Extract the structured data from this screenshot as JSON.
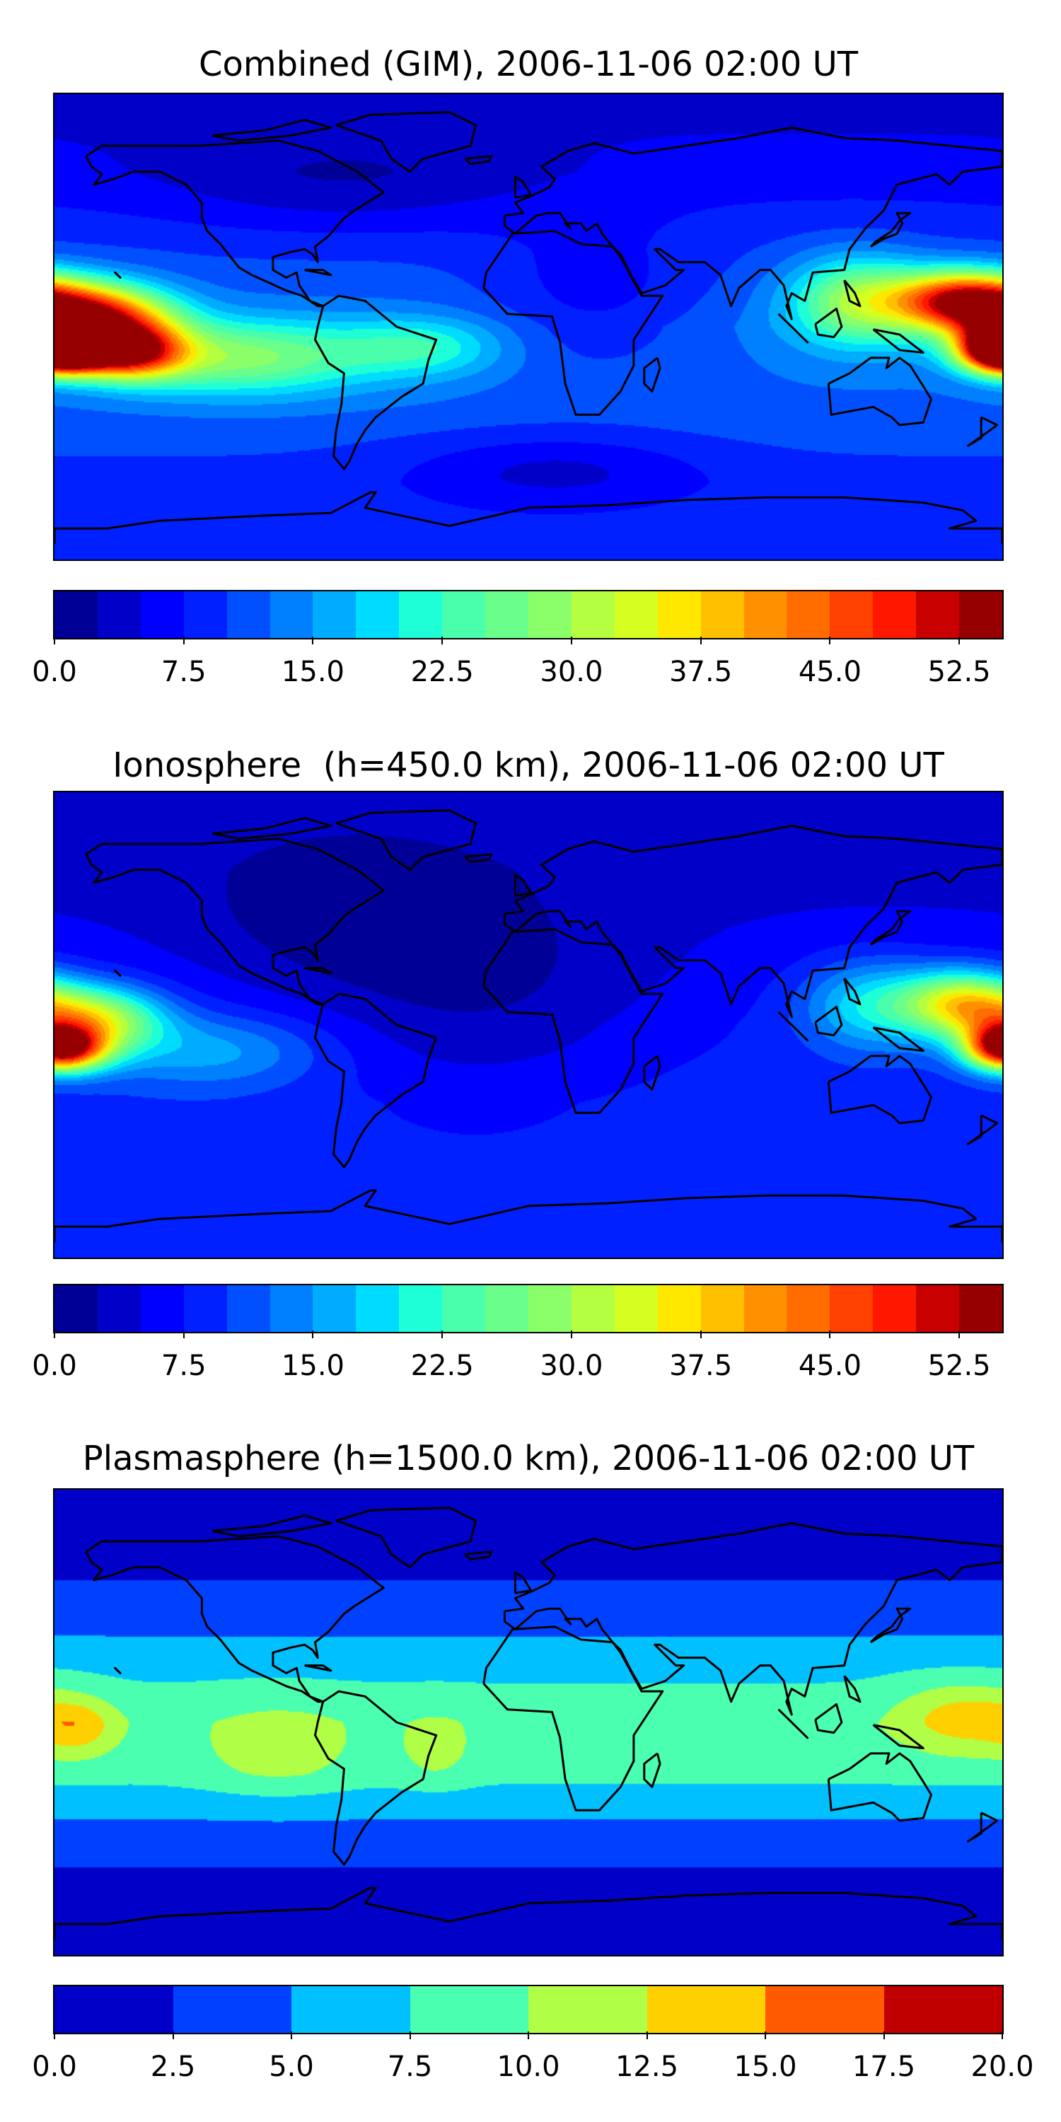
{
  "chart_data": [
    {
      "type": "heatmap",
      "subtype": "filled-contour-map",
      "title": "Combined (GIM), 2006-11-06 02:00 UT",
      "xlim": [
        -180,
        180
      ],
      "ylim": [
        -90,
        90
      ],
      "levels": {
        "min": 0,
        "max": 55,
        "step": 2.5
      },
      "colorbar_ticks": [
        "0.0",
        "7.5",
        "15.0",
        "22.5",
        "30.0",
        "37.5",
        "45.0",
        "52.5"
      ],
      "colorbar_tick_values": [
        0,
        7.5,
        15,
        22.5,
        30,
        37.5,
        45,
        52.5
      ],
      "colors": [
        "#000096",
        "#0000c8",
        "#0000ff",
        "#0020ff",
        "#0050ff",
        "#0080ff",
        "#00acff",
        "#00dcff",
        "#1effd8",
        "#4affac",
        "#6aff8a",
        "#8aff6a",
        "#b4ff40",
        "#d4ff20",
        "#ffe800",
        "#ffc000",
        "#ff9000",
        "#ff6c00",
        "#ff4000",
        "#ff1800",
        "#c80000",
        "#960000"
      ],
      "field": {
        "background_by_lat": [
          [
            -90,
            8
          ],
          [
            -60,
            9
          ],
          [
            -30,
            12
          ],
          [
            0,
            13
          ],
          [
            30,
            10
          ],
          [
            60,
            6
          ],
          [
            90,
            4
          ]
        ],
        "features": [
          {
            "lon": -165,
            "lat": 3,
            "amp": 38,
            "slon": 20,
            "slat": 9
          },
          {
            "lon": -175,
            "lat": -10,
            "amp": 30,
            "slon": 14,
            "slat": 6
          },
          {
            "lon": -150,
            "lat": -10,
            "amp": 28,
            "slon": 14,
            "slat": 7
          },
          {
            "lon": -110,
            "lat": -12,
            "amp": 16,
            "slon": 35,
            "slat": 10
          },
          {
            "lon": -40,
            "lat": -8,
            "amp": 9,
            "slon": 22,
            "slat": 8
          },
          {
            "lon": 165,
            "lat": 10,
            "amp": 38,
            "slon": 18,
            "slat": 8
          },
          {
            "lon": 180,
            "lat": -8,
            "amp": 36,
            "slon": 10,
            "slat": 6
          },
          {
            "lon": 125,
            "lat": 10,
            "amp": 18,
            "slon": 18,
            "slat": 12
          },
          {
            "lon": -70,
            "lat": 55,
            "amp": -4,
            "slon": 50,
            "slat": 14
          },
          {
            "lon": 10,
            "lat": -55,
            "amp": -5,
            "slon": 40,
            "slat": 10
          },
          {
            "lon": 25,
            "lat": 10,
            "amp": -5,
            "slon": 30,
            "slat": 20
          }
        ]
      }
    },
    {
      "type": "heatmap",
      "subtype": "filled-contour-map",
      "title": "Ionosphere  (h=450.0 km), 2006-11-06 02:00 UT",
      "xlim": [
        -180,
        180
      ],
      "ylim": [
        -90,
        90
      ],
      "levels": {
        "min": 0,
        "max": 55,
        "step": 2.5
      },
      "colorbar_ticks": [
        "0.0",
        "7.5",
        "15.0",
        "22.5",
        "30.0",
        "37.5",
        "45.0",
        "52.5"
      ],
      "colorbar_tick_values": [
        0,
        7.5,
        15,
        22.5,
        30,
        37.5,
        45,
        52.5
      ],
      "colors": [
        "#000096",
        "#0000c8",
        "#0000ff",
        "#0020ff",
        "#0050ff",
        "#0080ff",
        "#00acff",
        "#00dcff",
        "#1effd8",
        "#4affac",
        "#6aff8a",
        "#8aff6a",
        "#b4ff40",
        "#d4ff20",
        "#ffe800",
        "#ffc000",
        "#ff9000",
        "#ff6c00",
        "#ff4000",
        "#ff1800",
        "#c80000",
        "#960000"
      ],
      "field": {
        "background_by_lat": [
          [
            -90,
            8
          ],
          [
            -60,
            8
          ],
          [
            -30,
            9
          ],
          [
            0,
            8
          ],
          [
            30,
            6
          ],
          [
            60,
            4
          ],
          [
            90,
            3
          ]
        ],
        "features": [
          {
            "lon": -165,
            "lat": 2,
            "amp": 24,
            "slon": 18,
            "slat": 9
          },
          {
            "lon": -175,
            "lat": -10,
            "amp": 22,
            "slon": 12,
            "slat": 6
          },
          {
            "lon": -120,
            "lat": -10,
            "amp": 8,
            "slon": 30,
            "slat": 10
          },
          {
            "lon": 165,
            "lat": 8,
            "amp": 26,
            "slon": 16,
            "slat": 9
          },
          {
            "lon": 180,
            "lat": -8,
            "amp": 24,
            "slon": 10,
            "slat": 6
          },
          {
            "lon": 130,
            "lat": 8,
            "amp": 12,
            "slon": 18,
            "slat": 12
          },
          {
            "lon": -20,
            "lat": 10,
            "amp": -5,
            "slon": 50,
            "slat": 30
          },
          {
            "lon": -80,
            "lat": 40,
            "amp": -3,
            "slon": 40,
            "slat": 20
          }
        ]
      }
    },
    {
      "type": "heatmap",
      "subtype": "filled-contour-map",
      "title": "Plasmasphere (h=1500.0 km), 2006-11-06 02:00 UT",
      "xlim": [
        -180,
        180
      ],
      "ylim": [
        -90,
        90
      ],
      "levels": {
        "min": 0,
        "max": 20,
        "step": 2.5
      },
      "colorbar_ticks": [
        "0.0",
        "2.5",
        "5.0",
        "7.5",
        "10.0",
        "12.5",
        "15.0",
        "17.5",
        "20.0"
      ],
      "colorbar_tick_values": [
        0,
        2.5,
        5,
        7.5,
        10,
        12.5,
        15,
        17.5,
        20
      ],
      "colors": [
        "#0000c8",
        "#0040ff",
        "#00c0ff",
        "#4affb0",
        "#b0ff46",
        "#ffd000",
        "#ff5a00",
        "#c00000"
      ],
      "field": {
        "background_by_lat": [
          [
            -90,
            1
          ],
          [
            -60,
            2
          ],
          [
            -40,
            4.5
          ],
          [
            -20,
            8.2
          ],
          [
            0,
            9
          ],
          [
            20,
            7
          ],
          [
            40,
            4
          ],
          [
            60,
            2
          ],
          [
            90,
            1
          ]
        ],
        "features": [
          {
            "lon": 165,
            "lat": 2,
            "amp": 5,
            "slon": 18,
            "slat": 10
          },
          {
            "lon": -170,
            "lat": -2,
            "amp": 4,
            "slon": 10,
            "slat": 8
          },
          {
            "lon": -95,
            "lat": -10,
            "amp": 3,
            "slon": 20,
            "slat": 12
          },
          {
            "lon": -35,
            "lat": -10,
            "amp": 2.5,
            "slon": 10,
            "slat": 10
          }
        ]
      }
    }
  ]
}
